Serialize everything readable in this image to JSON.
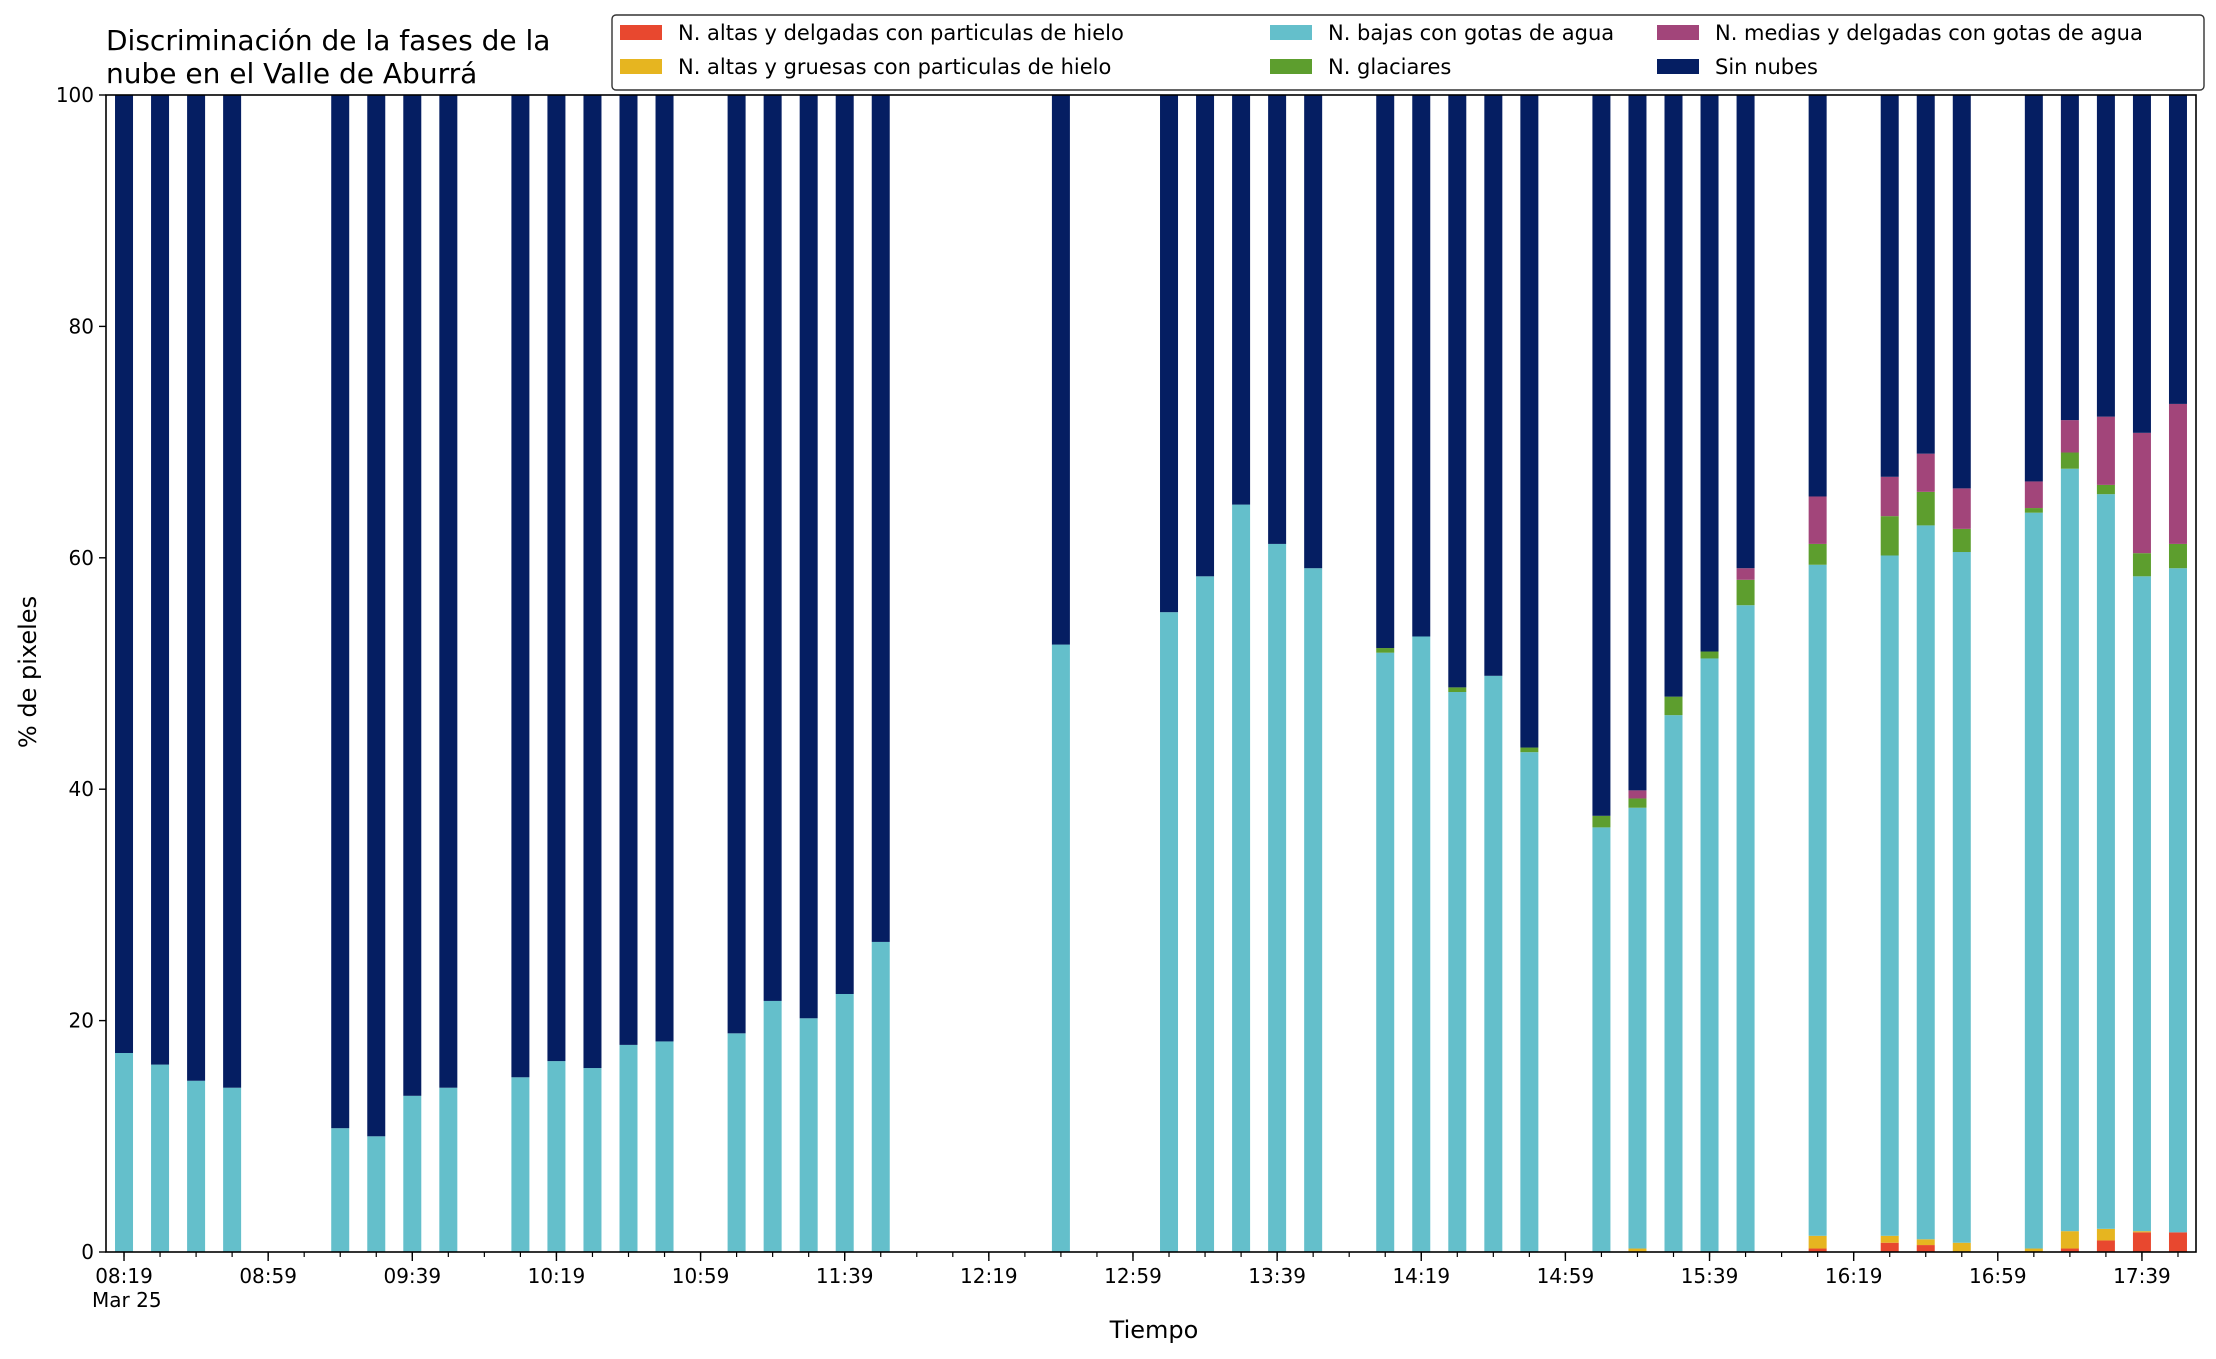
{
  "chart_data": {
    "type": "bar",
    "stacked": true,
    "title_lines": [
      "Discriminación de la fases de la",
      "nube en el Valle de Aburrá"
    ],
    "xlabel": "Tiempo",
    "ylabel": "% de pixeles",
    "ylim": [
      0,
      100
    ],
    "yticks": [
      "0",
      "20",
      "40",
      "60",
      "80",
      "100"
    ],
    "xlim": [
      "08:14",
      "17:54"
    ],
    "xticks": [
      {
        "label": "08:19",
        "sublabel": "Mar 25",
        "time": "08:19"
      },
      {
        "label": "08:59",
        "time": "08:59"
      },
      {
        "label": "09:39",
        "time": "09:39"
      },
      {
        "label": "10:19",
        "time": "10:19"
      },
      {
        "label": "10:59",
        "time": "10:59"
      },
      {
        "label": "11:39",
        "time": "11:39"
      },
      {
        "label": "12:19",
        "time": "12:19"
      },
      {
        "label": "12:59",
        "time": "12:59"
      },
      {
        "label": "13:39",
        "time": "13:39"
      },
      {
        "label": "14:19",
        "time": "14:19"
      },
      {
        "label": "14:59",
        "time": "14:59"
      },
      {
        "label": "15:39",
        "time": "15:39"
      },
      {
        "label": "16:19",
        "time": "16:19"
      },
      {
        "label": "16:59",
        "time": "16:59"
      },
      {
        "label": "17:39",
        "time": "17:39"
      }
    ],
    "grid": false,
    "legend_position": "top-right",
    "legend_order": [
      "altas_delgadas",
      "altas_gruesas",
      "bajas_agua",
      "glaciares",
      "medias_agua",
      "sin_nubes"
    ],
    "series": [
      {
        "key": "altas_delgadas",
        "name": "N. altas y delgadas con particulas de hielo",
        "color": "#e8482f"
      },
      {
        "key": "altas_gruesas",
        "name": "N. altas y gruesas con particulas de hielo",
        "color": "#e6b520"
      },
      {
        "key": "bajas_agua",
        "name": "N. bajas con gotas de agua",
        "color": "#64bfcb"
      },
      {
        "key": "glaciares",
        "name": "N. glaciares",
        "color": "#5d9e2e"
      },
      {
        "key": "medias_agua",
        "name": "N. medias y delgadas con gotas de agua",
        "color": "#a2457a"
      },
      {
        "key": "sin_nubes",
        "name": "Sin nubes",
        "color": "#051e62"
      }
    ],
    "stack_order": [
      "altas_delgadas",
      "altas_gruesas",
      "bajas_agua",
      "glaciares",
      "medias_agua",
      "sin_nubes"
    ],
    "points": [
      {
        "time": "08:19",
        "altas_delgadas": 0,
        "altas_gruesas": 0,
        "bajas_agua": 17.2,
        "glaciares": 0,
        "medias_agua": 0,
        "sin_nubes": 82.8
      },
      {
        "time": "08:29",
        "altas_delgadas": 0,
        "altas_gruesas": 0,
        "bajas_agua": 16.2,
        "glaciares": 0,
        "medias_agua": 0,
        "sin_nubes": 83.8
      },
      {
        "time": "08:39",
        "altas_delgadas": 0,
        "altas_gruesas": 0,
        "bajas_agua": 14.8,
        "glaciares": 0,
        "medias_agua": 0,
        "sin_nubes": 85.2
      },
      {
        "time": "08:49",
        "altas_delgadas": 0,
        "altas_gruesas": 0,
        "bajas_agua": 14.2,
        "glaciares": 0,
        "medias_agua": 0,
        "sin_nubes": 85.8
      },
      {
        "time": "09:19",
        "altas_delgadas": 0,
        "altas_gruesas": 0,
        "bajas_agua": 10.7,
        "glaciares": 0,
        "medias_agua": 0,
        "sin_nubes": 89.3
      },
      {
        "time": "09:29",
        "altas_delgadas": 0,
        "altas_gruesas": 0,
        "bajas_agua": 10.0,
        "glaciares": 0,
        "medias_agua": 0,
        "sin_nubes": 90.0
      },
      {
        "time": "09:39",
        "altas_delgadas": 0,
        "altas_gruesas": 0,
        "bajas_agua": 13.5,
        "glaciares": 0,
        "medias_agua": 0,
        "sin_nubes": 86.5
      },
      {
        "time": "09:49",
        "altas_delgadas": 0,
        "altas_gruesas": 0,
        "bajas_agua": 14.2,
        "glaciares": 0,
        "medias_agua": 0,
        "sin_nubes": 85.8
      },
      {
        "time": "10:09",
        "altas_delgadas": 0,
        "altas_gruesas": 0,
        "bajas_agua": 15.1,
        "glaciares": 0,
        "medias_agua": 0,
        "sin_nubes": 84.9
      },
      {
        "time": "10:19",
        "altas_delgadas": 0,
        "altas_gruesas": 0,
        "bajas_agua": 16.5,
        "glaciares": 0,
        "medias_agua": 0,
        "sin_nubes": 83.5
      },
      {
        "time": "10:29",
        "altas_delgadas": 0,
        "altas_gruesas": 0,
        "bajas_agua": 15.9,
        "glaciares": 0,
        "medias_agua": 0,
        "sin_nubes": 84.1
      },
      {
        "time": "10:39",
        "altas_delgadas": 0,
        "altas_gruesas": 0,
        "bajas_agua": 17.9,
        "glaciares": 0,
        "medias_agua": 0,
        "sin_nubes": 82.1
      },
      {
        "time": "10:49",
        "altas_delgadas": 0,
        "altas_gruesas": 0,
        "bajas_agua": 18.2,
        "glaciares": 0,
        "medias_agua": 0,
        "sin_nubes": 81.8
      },
      {
        "time": "11:09",
        "altas_delgadas": 0,
        "altas_gruesas": 0,
        "bajas_agua": 18.9,
        "glaciares": 0,
        "medias_agua": 0,
        "sin_nubes": 81.1
      },
      {
        "time": "11:19",
        "altas_delgadas": 0,
        "altas_gruesas": 0,
        "bajas_agua": 21.7,
        "glaciares": 0,
        "medias_agua": 0,
        "sin_nubes": 78.3
      },
      {
        "time": "11:29",
        "altas_delgadas": 0,
        "altas_gruesas": 0,
        "bajas_agua": 20.2,
        "glaciares": 0,
        "medias_agua": 0,
        "sin_nubes": 79.8
      },
      {
        "time": "11:39",
        "altas_delgadas": 0,
        "altas_gruesas": 0,
        "bajas_agua": 22.3,
        "glaciares": 0,
        "medias_agua": 0,
        "sin_nubes": 77.7
      },
      {
        "time": "11:49",
        "altas_delgadas": 0,
        "altas_gruesas": 0,
        "bajas_agua": 26.8,
        "glaciares": 0,
        "medias_agua": 0,
        "sin_nubes": 73.2
      },
      {
        "time": "12:39",
        "altas_delgadas": 0,
        "altas_gruesas": 0,
        "bajas_agua": 52.5,
        "glaciares": 0,
        "medias_agua": 0,
        "sin_nubes": 47.5
      },
      {
        "time": "13:09",
        "altas_delgadas": 0,
        "altas_gruesas": 0,
        "bajas_agua": 55.3,
        "glaciares": 0,
        "medias_agua": 0,
        "sin_nubes": 44.7
      },
      {
        "time": "13:19",
        "altas_delgadas": 0,
        "altas_gruesas": 0,
        "bajas_agua": 58.4,
        "glaciares": 0,
        "medias_agua": 0,
        "sin_nubes": 41.6
      },
      {
        "time": "13:29",
        "altas_delgadas": 0,
        "altas_gruesas": 0,
        "bajas_agua": 64.6,
        "glaciares": 0,
        "medias_agua": 0,
        "sin_nubes": 35.4
      },
      {
        "time": "13:39",
        "altas_delgadas": 0,
        "altas_gruesas": 0,
        "bajas_agua": 61.2,
        "glaciares": 0,
        "medias_agua": 0,
        "sin_nubes": 38.8
      },
      {
        "time": "13:49",
        "altas_delgadas": 0,
        "altas_gruesas": 0,
        "bajas_agua": 59.1,
        "glaciares": 0,
        "medias_agua": 0,
        "sin_nubes": 40.9
      },
      {
        "time": "14:09",
        "altas_delgadas": 0,
        "altas_gruesas": 0,
        "bajas_agua": 51.8,
        "glaciares": 0.4,
        "medias_agua": 0,
        "sin_nubes": 47.8
      },
      {
        "time": "14:19",
        "altas_delgadas": 0,
        "altas_gruesas": 0,
        "bajas_agua": 53.2,
        "glaciares": 0,
        "medias_agua": 0,
        "sin_nubes": 46.8
      },
      {
        "time": "14:29",
        "altas_delgadas": 0,
        "altas_gruesas": 0,
        "bajas_agua": 48.4,
        "glaciares": 0.4,
        "medias_agua": 0,
        "sin_nubes": 51.2
      },
      {
        "time": "14:39",
        "altas_delgadas": 0,
        "altas_gruesas": 0,
        "bajas_agua": 49.8,
        "glaciares": 0,
        "medias_agua": 0,
        "sin_nubes": 50.2
      },
      {
        "time": "14:49",
        "altas_delgadas": 0,
        "altas_gruesas": 0,
        "bajas_agua": 43.2,
        "glaciares": 0.4,
        "medias_agua": 0,
        "sin_nubes": 56.4
      },
      {
        "time": "15:09",
        "altas_delgadas": 0,
        "altas_gruesas": 0,
        "bajas_agua": 36.7,
        "glaciares": 1.0,
        "medias_agua": 0,
        "sin_nubes": 62.3
      },
      {
        "time": "15:19",
        "altas_delgadas": 0,
        "altas_gruesas": 0.3,
        "bajas_agua": 38.1,
        "glaciares": 0.8,
        "medias_agua": 0.7,
        "sin_nubes": 60.1
      },
      {
        "time": "15:29",
        "altas_delgadas": 0,
        "altas_gruesas": 0,
        "bajas_agua": 46.4,
        "glaciares": 1.6,
        "medias_agua": 0,
        "sin_nubes": 52.0
      },
      {
        "time": "15:39",
        "altas_delgadas": 0,
        "altas_gruesas": 0,
        "bajas_agua": 51.3,
        "glaciares": 0.6,
        "medias_agua": 0,
        "sin_nubes": 48.1
      },
      {
        "time": "15:49",
        "altas_delgadas": 0,
        "altas_gruesas": 0,
        "bajas_agua": 55.9,
        "glaciares": 2.2,
        "medias_agua": 1.0,
        "sin_nubes": 40.9
      },
      {
        "time": "16:09",
        "altas_delgadas": 0.3,
        "altas_gruesas": 1.1,
        "bajas_agua": 58.0,
        "glaciares": 1.8,
        "medias_agua": 4.1,
        "sin_nubes": 34.7
      },
      {
        "time": "16:29",
        "altas_delgadas": 0.8,
        "altas_gruesas": 0.6,
        "bajas_agua": 58.8,
        "glaciares": 3.4,
        "medias_agua": 3.4,
        "sin_nubes": 33.0
      },
      {
        "time": "16:39",
        "altas_delgadas": 0.6,
        "altas_gruesas": 0.5,
        "bajas_agua": 61.7,
        "glaciares": 2.9,
        "medias_agua": 3.3,
        "sin_nubes": 31.0
      },
      {
        "time": "16:49",
        "altas_delgadas": 0,
        "altas_gruesas": 0.8,
        "bajas_agua": 59.7,
        "glaciares": 2.0,
        "medias_agua": 3.5,
        "sin_nubes": 34.0
      },
      {
        "time": "17:09",
        "altas_delgadas": 0,
        "altas_gruesas": 0.3,
        "bajas_agua": 63.6,
        "glaciares": 0.4,
        "medias_agua": 2.3,
        "sin_nubes": 33.4
      },
      {
        "time": "17:19",
        "altas_delgadas": 0.3,
        "altas_gruesas": 1.5,
        "bajas_agua": 65.9,
        "glaciares": 1.4,
        "medias_agua": 2.8,
        "sin_nubes": 28.1
      },
      {
        "time": "17:29",
        "altas_delgadas": 1.0,
        "altas_gruesas": 1.0,
        "bajas_agua": 63.5,
        "glaciares": 0.8,
        "medias_agua": 5.9,
        "sin_nubes": 27.8
      },
      {
        "time": "17:39",
        "altas_delgadas": 1.7,
        "altas_gruesas": 0.1,
        "bajas_agua": 56.6,
        "glaciares": 2.0,
        "medias_agua": 10.4,
        "sin_nubes": 29.2
      },
      {
        "time": "17:49",
        "altas_delgadas": 1.7,
        "altas_gruesas": 0,
        "bajas_agua": 57.4,
        "glaciares": 2.1,
        "medias_agua": 12.1,
        "sin_nubes": 26.7
      }
    ]
  }
}
